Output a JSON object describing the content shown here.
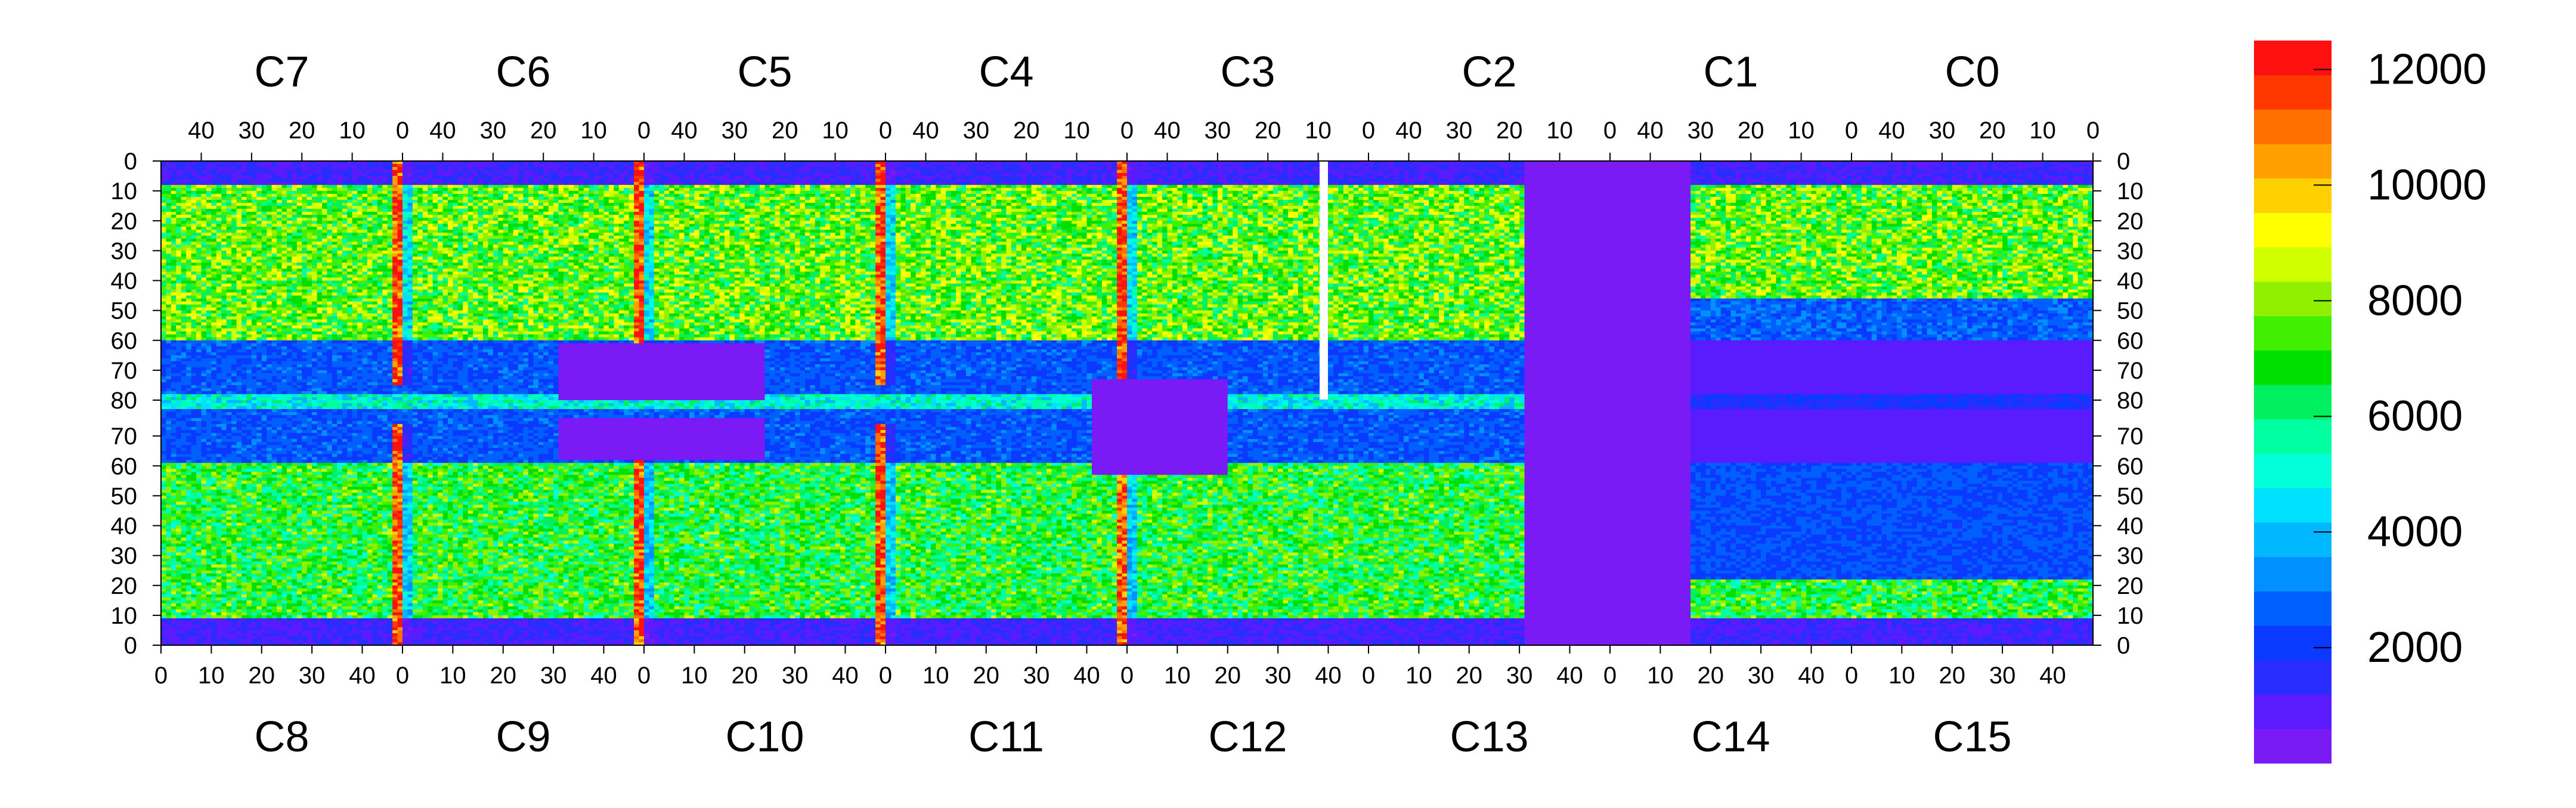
{
  "chart_data": {
    "type": "heatmap",
    "title": "",
    "top_chamber_labels": [
      "C7",
      "C6",
      "C5",
      "C4",
      "C3",
      "C2",
      "C1",
      "C0"
    ],
    "bottom_chamber_labels": [
      "C8",
      "C9",
      "C10",
      "C11",
      "C12",
      "C13",
      "C14",
      "C15"
    ],
    "top_x_ticks": [
      "40",
      "30",
      "20",
      "10",
      "0"
    ],
    "bottom_x_ticks": [
      "0",
      "10",
      "20",
      "30",
      "40"
    ],
    "y_ticks_upper": [
      "0",
      "10",
      "20",
      "30",
      "40",
      "50",
      "60",
      "70",
      "80"
    ],
    "y_ticks_lower": [
      "70",
      "60",
      "50",
      "40",
      "30",
      "20",
      "10",
      "0"
    ],
    "colorbar": {
      "range": [
        0,
        12500
      ],
      "tick_labels": [
        "2000",
        "4000",
        "6000",
        "8000",
        "10000",
        "12000"
      ],
      "tick_values": [
        2000,
        4000,
        6000,
        8000,
        10000,
        12000
      ]
    },
    "colorscale": [
      "#7a1af5",
      "#5a1cff",
      "#2a2dff",
      "#0a3aff",
      "#0060ff",
      "#0090ff",
      "#00b8ff",
      "#00e0ff",
      "#00ffd8",
      "#00ffa0",
      "#00f060",
      "#00e000",
      "#40f000",
      "#90f000",
      "#d0ff00",
      "#ffff00",
      "#ffd000",
      "#ffa000",
      "#ff7000",
      "#ff3800",
      "#ff1010"
    ],
    "bands_upper": {
      "0-10": 1200,
      "10-60": 7500,
      "60-78": 2500,
      "78-82": 5000
    },
    "bands_lower": {
      "78-60": 2500,
      "60-10": 6800,
      "10-0": 1200
    },
    "hot_columns_value": 11500,
    "dead_region_value": 400
  }
}
